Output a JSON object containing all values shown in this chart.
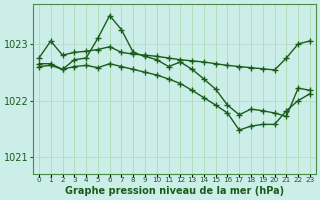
{
  "line1": [
    1022.75,
    1023.05,
    1022.8,
    1022.85,
    1022.87,
    1022.9,
    1022.95,
    1022.85,
    1022.82,
    1022.8,
    1022.78,
    1022.75,
    1022.72,
    1022.7,
    1022.68,
    1022.65,
    1022.62,
    1022.6,
    1022.58,
    1022.56,
    1022.54,
    1022.75,
    1023.0,
    1023.05
  ],
  "line2": [
    1022.65,
    1022.65,
    1022.55,
    1022.72,
    1022.75,
    1023.1,
    1023.5,
    1023.25,
    1022.85,
    1022.78,
    1022.72,
    1022.6,
    1022.68,
    1022.55,
    1022.38,
    1022.2,
    1021.92,
    1021.75,
    1021.85,
    1021.82,
    1021.78,
    1021.72,
    1022.22,
    1022.18
  ],
  "line3": [
    1022.6,
    1022.62,
    1022.55,
    1022.6,
    1022.62,
    1022.58,
    1022.65,
    1022.6,
    1022.55,
    1022.5,
    1022.45,
    1022.38,
    1022.3,
    1022.18,
    1022.05,
    1021.92,
    1021.78,
    1021.48,
    1021.55,
    1021.58,
    1021.58,
    1021.82,
    1022.0,
    1022.12
  ],
  "hours": [
    0,
    1,
    2,
    3,
    4,
    5,
    6,
    7,
    8,
    9,
    10,
    11,
    12,
    13,
    14,
    15,
    16,
    17,
    18,
    19,
    20,
    21,
    22,
    23
  ],
  "yticks": [
    1021,
    1022,
    1023
  ],
  "ylim": [
    1020.7,
    1023.7
  ],
  "xlim": [
    -0.5,
    23.5
  ],
  "line_color": "#1a5c1a",
  "bg_color": "#cceee8",
  "grid_color_v": "#a8d8a8",
  "grid_color_h": "#b8d8d0",
  "xlabel": "Graphe pression niveau de la mer (hPa)",
  "xlabel_color": "#1a5c1a",
  "tick_color": "#1a5c1a",
  "axis_color": "#4a8a4a"
}
